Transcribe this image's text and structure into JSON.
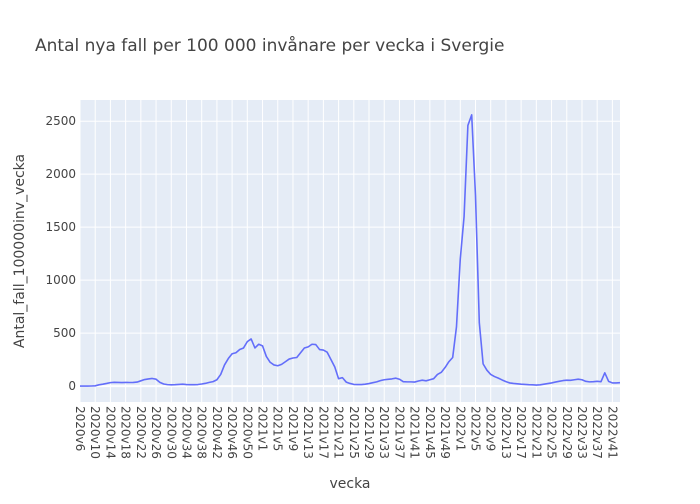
{
  "chart_data": {
    "type": "line",
    "title": "Antal nya fall per 100 000 invånare per vecka i Svergie",
    "xlabel": "vecka",
    "ylabel": "Antal_fall_100000inv_vecka",
    "ylim": [
      -150,
      2700
    ],
    "yticks": [
      0,
      500,
      1000,
      1500,
      2000,
      2500
    ],
    "grid": true,
    "series": [
      {
        "name": "",
        "color": "#636efa",
        "points": [
          {
            "x": "2020v6",
            "y": 0
          },
          {
            "x": "2020v7",
            "y": 0
          },
          {
            "x": "2020v8",
            "y": 0
          },
          {
            "x": "2020v9",
            "y": 1
          },
          {
            "x": "2020v10",
            "y": 3
          },
          {
            "x": "2020v11",
            "y": 12
          },
          {
            "x": "2020v12",
            "y": 18
          },
          {
            "x": "2020v13",
            "y": 25
          },
          {
            "x": "2020v14",
            "y": 33
          },
          {
            "x": "2020v15",
            "y": 36
          },
          {
            "x": "2020v16",
            "y": 35
          },
          {
            "x": "2020v17",
            "y": 33
          },
          {
            "x": "2020v18",
            "y": 35
          },
          {
            "x": "2020v19",
            "y": 34
          },
          {
            "x": "2020v20",
            "y": 35
          },
          {
            "x": "2020v21",
            "y": 38
          },
          {
            "x": "2020v22",
            "y": 50
          },
          {
            "x": "2020v23",
            "y": 62
          },
          {
            "x": "2020v24",
            "y": 68
          },
          {
            "x": "2020v25",
            "y": 72
          },
          {
            "x": "2020v26",
            "y": 65
          },
          {
            "x": "2020v27",
            "y": 35
          },
          {
            "x": "2020v28",
            "y": 20
          },
          {
            "x": "2020v29",
            "y": 14
          },
          {
            "x": "2020v30",
            "y": 12
          },
          {
            "x": "2020v31",
            "y": 13
          },
          {
            "x": "2020v32",
            "y": 16
          },
          {
            "x": "2020v33",
            "y": 18
          },
          {
            "x": "2020v34",
            "y": 15
          },
          {
            "x": "2020v35",
            "y": 13
          },
          {
            "x": "2020v36",
            "y": 13
          },
          {
            "x": "2020v37",
            "y": 15
          },
          {
            "x": "2020v38",
            "y": 20
          },
          {
            "x": "2020v39",
            "y": 26
          },
          {
            "x": "2020v40",
            "y": 35
          },
          {
            "x": "2020v41",
            "y": 42
          },
          {
            "x": "2020v42",
            "y": 60
          },
          {
            "x": "2020v43",
            "y": 110
          },
          {
            "x": "2020v44",
            "y": 200
          },
          {
            "x": "2020v45",
            "y": 260
          },
          {
            "x": "2020v46",
            "y": 305
          },
          {
            "x": "2020v47",
            "y": 315
          },
          {
            "x": "2020v48",
            "y": 345
          },
          {
            "x": "2020v49",
            "y": 360
          },
          {
            "x": "2020v50",
            "y": 420
          },
          {
            "x": "2020v51",
            "y": 445
          },
          {
            "x": "2020v52",
            "y": 360
          },
          {
            "x": "2020v53",
            "y": 395
          },
          {
            "x": "2021v1",
            "y": 380
          },
          {
            "x": "2021v2",
            "y": 280
          },
          {
            "x": "2021v3",
            "y": 225
          },
          {
            "x": "2021v4",
            "y": 200
          },
          {
            "x": "2021v5",
            "y": 192
          },
          {
            "x": "2021v6",
            "y": 205
          },
          {
            "x": "2021v7",
            "y": 230
          },
          {
            "x": "2021v8",
            "y": 255
          },
          {
            "x": "2021v9",
            "y": 265
          },
          {
            "x": "2021v10",
            "y": 270
          },
          {
            "x": "2021v11",
            "y": 315
          },
          {
            "x": "2021v12",
            "y": 360
          },
          {
            "x": "2021v13",
            "y": 370
          },
          {
            "x": "2021v14",
            "y": 395
          },
          {
            "x": "2021v15",
            "y": 392
          },
          {
            "x": "2021v16",
            "y": 345
          },
          {
            "x": "2021v17",
            "y": 340
          },
          {
            "x": "2021v18",
            "y": 320
          },
          {
            "x": "2021v19",
            "y": 250
          },
          {
            "x": "2021v20",
            "y": 180
          },
          {
            "x": "2021v21",
            "y": 70
          },
          {
            "x": "2021v22",
            "y": 80
          },
          {
            "x": "2021v23",
            "y": 38
          },
          {
            "x": "2021v24",
            "y": 25
          },
          {
            "x": "2021v25",
            "y": 16
          },
          {
            "x": "2021v26",
            "y": 15
          },
          {
            "x": "2021v27",
            "y": 15
          },
          {
            "x": "2021v28",
            "y": 18
          },
          {
            "x": "2021v29",
            "y": 24
          },
          {
            "x": "2021v30",
            "y": 32
          },
          {
            "x": "2021v31",
            "y": 40
          },
          {
            "x": "2021v32",
            "y": 52
          },
          {
            "x": "2021v33",
            "y": 60
          },
          {
            "x": "2021v34",
            "y": 64
          },
          {
            "x": "2021v35",
            "y": 68
          },
          {
            "x": "2021v36",
            "y": 75
          },
          {
            "x": "2021v37",
            "y": 65
          },
          {
            "x": "2021v38",
            "y": 42
          },
          {
            "x": "2021v39",
            "y": 40
          },
          {
            "x": "2021v40",
            "y": 40
          },
          {
            "x": "2021v41",
            "y": 38
          },
          {
            "x": "2021v42",
            "y": 48
          },
          {
            "x": "2021v43",
            "y": 56
          },
          {
            "x": "2021v44",
            "y": 50
          },
          {
            "x": "2021v45",
            "y": 60
          },
          {
            "x": "2021v46",
            "y": 70
          },
          {
            "x": "2021v47",
            "y": 110
          },
          {
            "x": "2021v48",
            "y": 130
          },
          {
            "x": "2021v49",
            "y": 175
          },
          {
            "x": "2021v50",
            "y": 230
          },
          {
            "x": "2021v51",
            "y": 270
          },
          {
            "x": "2021v52",
            "y": 560
          },
          {
            "x": "2022v1",
            "y": 1200
          },
          {
            "x": "2022v2",
            "y": 1600
          },
          {
            "x": "2022v3",
            "y": 2460
          },
          {
            "x": "2022v4",
            "y": 2560
          },
          {
            "x": "2022v5",
            "y": 1800
          },
          {
            "x": "2022v6",
            "y": 600
          },
          {
            "x": "2022v7",
            "y": 210
          },
          {
            "x": "2022v8",
            "y": 150
          },
          {
            "x": "2022v9",
            "y": 110
          },
          {
            "x": "2022v10",
            "y": 90
          },
          {
            "x": "2022v11",
            "y": 75
          },
          {
            "x": "2022v12",
            "y": 58
          },
          {
            "x": "2022v13",
            "y": 42
          },
          {
            "x": "2022v14",
            "y": 30
          },
          {
            "x": "2022v15",
            "y": 25
          },
          {
            "x": "2022v16",
            "y": 22
          },
          {
            "x": "2022v17",
            "y": 18
          },
          {
            "x": "2022v18",
            "y": 16
          },
          {
            "x": "2022v19",
            "y": 13
          },
          {
            "x": "2022v20",
            "y": 12
          },
          {
            "x": "2022v21",
            "y": 10
          },
          {
            "x": "2022v22",
            "y": 12
          },
          {
            "x": "2022v23",
            "y": 18
          },
          {
            "x": "2022v24",
            "y": 24
          },
          {
            "x": "2022v25",
            "y": 30
          },
          {
            "x": "2022v26",
            "y": 38
          },
          {
            "x": "2022v27",
            "y": 45
          },
          {
            "x": "2022v28",
            "y": 52
          },
          {
            "x": "2022v29",
            "y": 56
          },
          {
            "x": "2022v30",
            "y": 55
          },
          {
            "x": "2022v31",
            "y": 60
          },
          {
            "x": "2022v32",
            "y": 65
          },
          {
            "x": "2022v33",
            "y": 60
          },
          {
            "x": "2022v34",
            "y": 45
          },
          {
            "x": "2022v35",
            "y": 40
          },
          {
            "x": "2022v36",
            "y": 42
          },
          {
            "x": "2022v37",
            "y": 45
          },
          {
            "x": "2022v38",
            "y": 42
          },
          {
            "x": "2022v39",
            "y": 125
          },
          {
            "x": "2022v40",
            "y": 45
          },
          {
            "x": "2022v41",
            "y": 30
          },
          {
            "x": "2022v42",
            "y": 30
          },
          {
            "x": "2022v43",
            "y": 32
          }
        ]
      }
    ],
    "xtick_labels": [
      "2020v6",
      "2020v10",
      "2020v14",
      "2020v18",
      "2020v22",
      "2020v26",
      "2020v30",
      "2020v34",
      "2020v38",
      "2020v42",
      "2020v46",
      "2020v50",
      "2021v1",
      "2021v5",
      "2021v9",
      "2021v13",
      "2021v17",
      "2021v21",
      "2021v25",
      "2021v29",
      "2021v33",
      "2021v37",
      "2021v41",
      "2021v45",
      "2021v49",
      "2022v1",
      "2022v5",
      "2022v9",
      "2022v13",
      "2022v17",
      "2022v21",
      "2022v25",
      "2022v29",
      "2022v33",
      "2022v37",
      "2022v41"
    ]
  }
}
